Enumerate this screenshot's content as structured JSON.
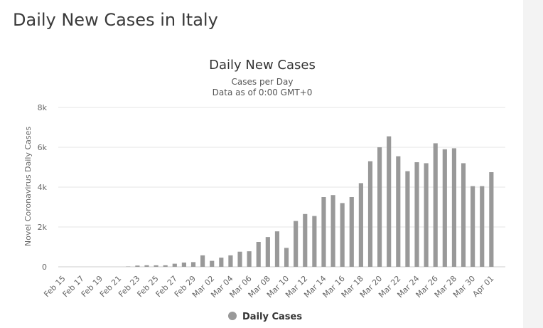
{
  "page": {
    "title": "Daily New Cases in Italy"
  },
  "colors": {
    "bar": "#999999",
    "grid": "#e6e6e6",
    "gutter": "#f3f3f3"
  },
  "chart_data": {
    "type": "bar",
    "title": "Daily New Cases",
    "subtitle": [
      "Cases per Day",
      "Data as of 0:00 GMT+0"
    ],
    "ylabel": "Novel Coronavirus Daily Cases",
    "ylim": [
      0,
      8000
    ],
    "yticks": [
      0,
      2000,
      4000,
      6000,
      8000
    ],
    "ytick_labels": [
      "0",
      "2k",
      "4k",
      "6k",
      "8k"
    ],
    "grid": true,
    "legend_position": "bottom-center",
    "series": [
      {
        "name": "Daily Cases",
        "color": "#999999"
      }
    ],
    "categories": [
      "Feb 15",
      "Feb 16",
      "Feb 17",
      "Feb 18",
      "Feb 19",
      "Feb 20",
      "Feb 21",
      "Feb 22",
      "Feb 23",
      "Feb 24",
      "Feb 25",
      "Feb 26",
      "Feb 27",
      "Feb 28",
      "Feb 29",
      "Mar 01",
      "Mar 02",
      "Mar 03",
      "Mar 04",
      "Mar 05",
      "Mar 06",
      "Mar 07",
      "Mar 08",
      "Mar 09",
      "Mar 10",
      "Mar 11",
      "Mar 12",
      "Mar 13",
      "Mar 14",
      "Mar 15",
      "Mar 16",
      "Mar 17",
      "Mar 18",
      "Mar 19",
      "Mar 20",
      "Mar 21",
      "Mar 22",
      "Mar 23",
      "Mar 24",
      "Mar 25",
      "Mar 26",
      "Mar 27",
      "Mar 28",
      "Mar 29",
      "Mar 30",
      "Mar 31",
      "Apr 01",
      "Apr 02"
    ],
    "xtick_labels": [
      "Feb 15",
      "Feb 17",
      "Feb 19",
      "Feb 21",
      "Feb 23",
      "Feb 25",
      "Feb 27",
      "Feb 29",
      "Mar 02",
      "Mar 04",
      "Mar 06",
      "Mar 08",
      "Mar 10",
      "Mar 12",
      "Mar 14",
      "Mar 16",
      "Mar 18",
      "Mar 20",
      "Mar 22",
      "Mar 24",
      "Mar 26",
      "Mar 28",
      "Mar 30",
      "Apr 01"
    ],
    "values": [
      0,
      0,
      0,
      0,
      0,
      0,
      0,
      17,
      63,
      78,
      76,
      77,
      156,
      214,
      236,
      575,
      300,
      460,
      575,
      760,
      780,
      1250,
      1495,
      1780,
      950,
      2300,
      2650,
      2550,
      3500,
      3600,
      3200,
      3500,
      4200,
      5300,
      6000,
      6550,
      5550,
      4800,
      5250,
      5200,
      6200,
      5900,
      5950,
      5200,
      4050,
      4050,
      4750,
      0
    ]
  }
}
